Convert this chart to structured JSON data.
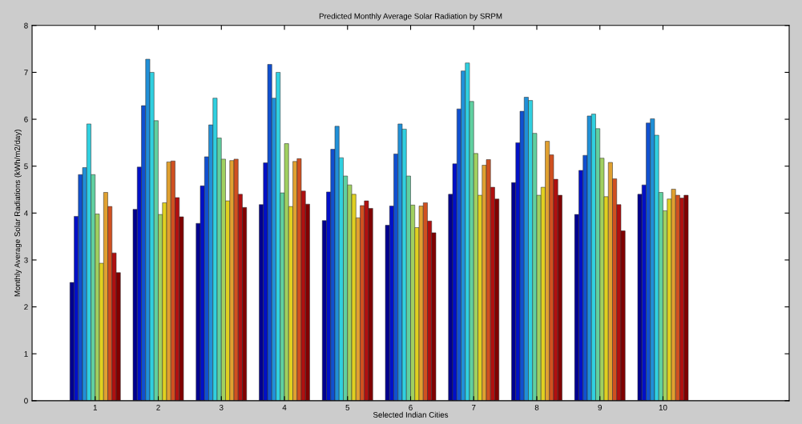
{
  "chart_data": {
    "type": "bar",
    "title": "Predicted Monthly Average Solar Radiation by SRPM",
    "xlabel": "Selected Indian Cities",
    "ylabel": "Monthly Average Solar Radiations (kWh/m2/day)",
    "categories": [
      "1",
      "2",
      "3",
      "4",
      "5",
      "6",
      "7",
      "8",
      "9",
      "10"
    ],
    "ylim": [
      0,
      8
    ],
    "yticks": [
      0,
      1,
      2,
      3,
      4,
      5,
      6,
      7,
      8
    ],
    "grid": false,
    "legend": false,
    "series": [
      {
        "color": "#00008f",
        "values": [
          2.52,
          4.08,
          3.78,
          4.18,
          3.84,
          3.74,
          4.4,
          4.65,
          3.97,
          4.4
        ]
      },
      {
        "color": "#0010c8",
        "values": [
          3.93,
          4.98,
          4.58,
          5.07,
          4.45,
          4.15,
          5.05,
          5.5,
          4.91,
          4.6
        ]
      },
      {
        "color": "#1050d0",
        "values": [
          4.82,
          6.29,
          5.2,
          7.17,
          5.36,
          5.26,
          6.22,
          6.17,
          5.23,
          5.92
        ]
      },
      {
        "color": "#2090d8",
        "values": [
          4.97,
          7.28,
          5.88,
          6.45,
          5.85,
          5.9,
          7.03,
          6.47,
          6.07,
          6.01
        ]
      },
      {
        "color": "#30d0e0",
        "values": [
          5.9,
          7.0,
          6.45,
          7.0,
          5.18,
          5.79,
          7.2,
          6.4,
          6.11,
          5.66
        ]
      },
      {
        "color": "#60d0a0",
        "values": [
          4.82,
          5.97,
          5.6,
          4.43,
          4.79,
          4.79,
          6.38,
          5.7,
          5.8,
          4.44
        ]
      },
      {
        "color": "#a0d060",
        "values": [
          3.98,
          3.97,
          5.15,
          5.48,
          4.6,
          4.17,
          5.27,
          4.38,
          5.17,
          4.05
        ]
      },
      {
        "color": "#e0d020",
        "values": [
          2.93,
          4.22,
          4.26,
          4.14,
          4.4,
          3.69,
          4.38,
          4.55,
          4.35,
          4.3
        ]
      },
      {
        "color": "#e0a030",
        "values": [
          4.44,
          5.09,
          5.12,
          5.1,
          3.9,
          4.15,
          5.02,
          5.53,
          5.08,
          4.51
        ]
      },
      {
        "color": "#d05020",
        "values": [
          4.14,
          5.11,
          5.15,
          5.16,
          4.16,
          4.22,
          5.14,
          5.24,
          4.73,
          4.38
        ]
      },
      {
        "color": "#b01010",
        "values": [
          3.15,
          4.33,
          4.4,
          4.47,
          4.26,
          3.83,
          4.55,
          4.72,
          4.18,
          4.32
        ]
      },
      {
        "color": "#800000",
        "values": [
          2.73,
          3.92,
          4.12,
          4.19,
          4.1,
          3.58,
          4.3,
          4.38,
          3.62,
          4.38
        ]
      }
    ]
  }
}
